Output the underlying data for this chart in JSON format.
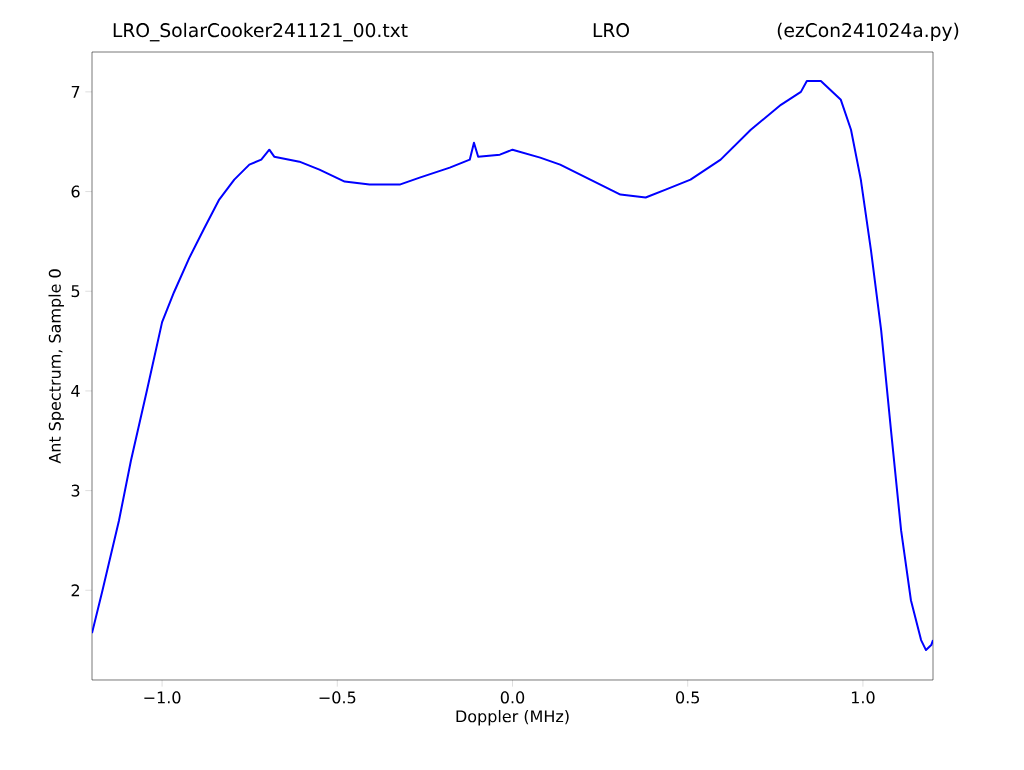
{
  "chart_data": {
    "type": "line",
    "title": "LRO_SolarCooker241121_00.txt",
    "subtitle": "LRO",
    "annotations": [
      "(ezCon241024a.py)"
    ],
    "xlabel": "Doppler (MHz)",
    "ylabel": "Ant Spectrum, Sample 0",
    "x": [
      -1.2,
      -1.17,
      -1.123,
      -1.089,
      -1.043,
      -1.0,
      -0.966,
      -0.923,
      -0.88,
      -0.837,
      -0.794,
      -0.751,
      -0.717,
      -0.694,
      -0.68,
      -0.608,
      -0.551,
      -0.479,
      -0.408,
      -0.322,
      -0.265,
      -0.179,
      -0.122,
      -0.11,
      -0.098,
      -0.036,
      0.0,
      0.079,
      0.136,
      0.222,
      0.308,
      0.38,
      0.437,
      0.508,
      0.594,
      0.68,
      0.766,
      0.823,
      0.84,
      0.88,
      0.937,
      0.966,
      0.994,
      1.023,
      1.052,
      1.08,
      1.109,
      1.137,
      1.166,
      1.18,
      1.195,
      1.2
    ],
    "series": [
      {
        "color": "#0000ff",
        "values": [
          1.57,
          2.0,
          2.7,
          3.3,
          4.01,
          4.69,
          4.99,
          5.33,
          5.63,
          5.92,
          6.12,
          6.27,
          6.32,
          6.42,
          6.35,
          6.3,
          6.22,
          6.1,
          6.07,
          6.07,
          6.14,
          6.24,
          6.32,
          6.49,
          6.35,
          6.37,
          6.42,
          6.34,
          6.27,
          6.12,
          5.97,
          5.94,
          6.02,
          6.12,
          6.32,
          6.62,
          6.87,
          7.0,
          7.11,
          7.11,
          6.92,
          6.62,
          6.12,
          5.41,
          4.61,
          3.61,
          2.6,
          1.9,
          1.5,
          1.4,
          1.45,
          1.5
        ]
      }
    ],
    "xlim": [
      -1.2,
      1.2
    ],
    "ylim": [
      1.1,
      7.4
    ],
    "xticks": [
      {
        "value": -1.0,
        "label": "−1.0"
      },
      {
        "value": -0.5,
        "label": "−0.5"
      },
      {
        "value": 0.0,
        "label": "0.0"
      },
      {
        "value": 0.5,
        "label": "0.5"
      },
      {
        "value": 1.0,
        "label": "1.0"
      }
    ],
    "yticks": [
      2,
      3,
      4,
      5,
      6,
      7
    ]
  }
}
